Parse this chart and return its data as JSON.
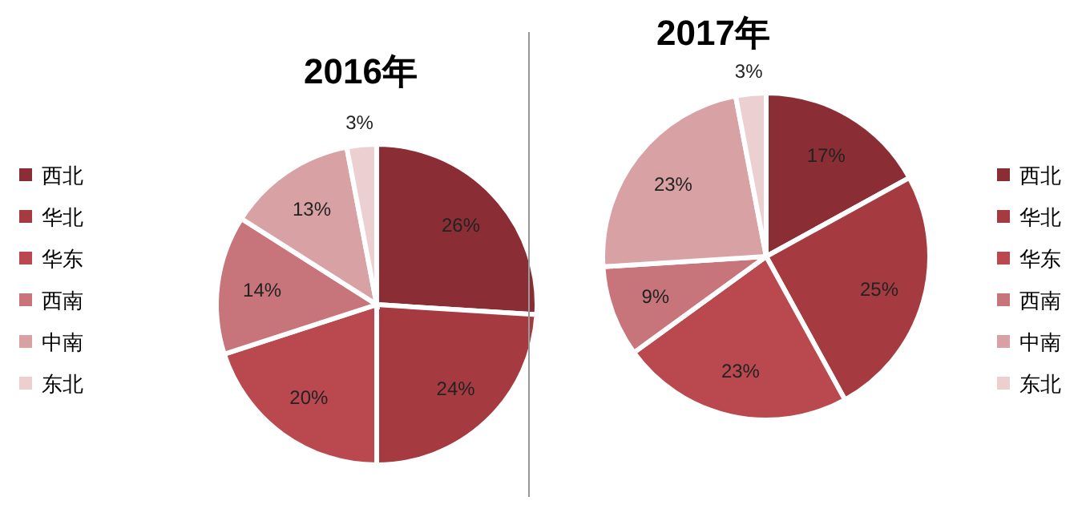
{
  "chart_data": [
    {
      "type": "pie",
      "title": "2016年",
      "categories": [
        "西北",
        "华北",
        "华东",
        "西南",
        "中南",
        "东北"
      ],
      "values": [
        26,
        24,
        20,
        14,
        13,
        3
      ],
      "value_labels": [
        "26%",
        "24%",
        "20%",
        "14%",
        "13%",
        "3%"
      ],
      "colors": [
        "#8b2d35",
        "#a53b41",
        "#b9494f",
        "#c7757a",
        "#d8a2a5",
        "#ecd0d1"
      ],
      "legend": "left"
    },
    {
      "type": "pie",
      "title": "2017年",
      "categories": [
        "西北",
        "华北",
        "华东",
        "西南",
        "中南",
        "东北"
      ],
      "values": [
        17,
        25,
        23,
        9,
        23,
        3
      ],
      "value_labels": [
        "17%",
        "25%",
        "23%",
        "9%",
        "23%",
        "3%"
      ],
      "colors": [
        "#8b2d35",
        "#a53b41",
        "#b9494f",
        "#c7757a",
        "#d8a2a5",
        "#ecd0d1"
      ],
      "legend": "right"
    }
  ]
}
